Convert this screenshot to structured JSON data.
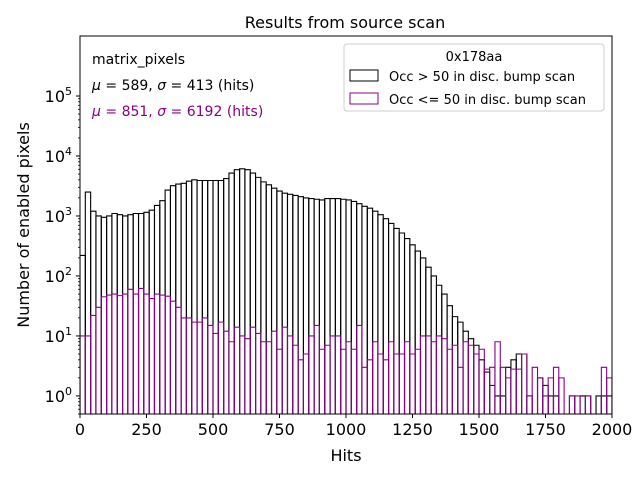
{
  "chart_data": {
    "type": "histogram",
    "title": "Results from source scan",
    "xlabel": "Hits",
    "ylabel": "Number of enabled pixels",
    "xlim": [
      0,
      2000
    ],
    "ylim": [
      0.5,
      1000000
    ],
    "yscale": "log",
    "bin_width": 20,
    "xticks": [
      0,
      250,
      500,
      750,
      1000,
      1250,
      1500,
      1750,
      2000
    ],
    "xtick_labels": [
      "0",
      "250",
      "500",
      "750",
      "1000",
      "1250",
      "1500",
      "1750",
      "2000"
    ],
    "yticks": [
      1,
      10,
      100,
      1000,
      10000,
      100000
    ],
    "ytick_labels": [
      {
        "b": "10",
        "e": "0"
      },
      {
        "b": "10",
        "e": "1"
      },
      {
        "b": "10",
        "e": "2"
      },
      {
        "b": "10",
        "e": "3"
      },
      {
        "b": "10",
        "e": "4"
      },
      {
        "b": "10",
        "e": "5"
      }
    ],
    "annotations": {
      "name": "matrix_pixels",
      "stats_black": {
        "mu": "589",
        "sigma": "413",
        "unit": "(hits)"
      },
      "stats_purple": {
        "mu": "851",
        "sigma": "6192",
        "unit": "(hits)"
      }
    },
    "legend": {
      "title": "0x178aa",
      "position": "top-right",
      "entries": [
        "Occ > 50 in disc. bump scan",
        "Occ <= 50 in disc. bump scan"
      ]
    },
    "series": [
      {
        "name": "Occ > 50 in disc. bump scan",
        "color": "#000000",
        "values": [
          220,
          2500,
          1200,
          1000,
          950,
          1000,
          1100,
          1050,
          1000,
          1050,
          1100,
          1100,
          1150,
          1250,
          1500,
          1800,
          2700,
          3200,
          3400,
          3500,
          3800,
          4000,
          3900,
          3900,
          3900,
          3900,
          3900,
          4200,
          5200,
          5900,
          6100,
          5900,
          5200,
          4400,
          3700,
          3300,
          2900,
          2600,
          2400,
          2300,
          2200,
          2100,
          2000,
          1950,
          1900,
          1850,
          1950,
          1950,
          1950,
          1900,
          1850,
          1750,
          1600,
          1450,
          1350,
          1200,
          1050,
          900,
          750,
          620,
          520,
          420,
          330,
          260,
          200,
          140,
          100,
          70,
          50,
          32,
          21,
          17,
          12,
          9,
          7,
          4,
          2.5,
          1.5,
          1,
          1,
          3,
          4,
          5,
          5,
          1,
          0.5,
          2,
          1.5,
          1,
          1,
          0.5,
          0.5,
          1,
          0.5,
          1,
          1,
          0.5,
          1,
          1,
          1
        ]
      },
      {
        "name": "Occ <= 50 in disc. bump scan",
        "color": "#880088",
        "values": [
          10,
          10,
          22,
          30,
          45,
          48,
          50,
          47,
          50,
          60,
          50,
          62,
          50,
          42,
          50,
          48,
          46,
          38,
          30,
          20,
          20,
          17,
          17,
          20,
          15,
          11,
          17,
          12,
          8,
          14,
          10,
          9,
          14,
          11,
          8,
          8,
          12,
          6,
          14,
          10,
          7,
          4,
          5,
          10,
          15,
          6,
          7,
          10,
          10,
          6,
          8,
          6,
          15,
          3,
          4,
          8,
          5,
          4,
          8,
          5,
          5,
          8,
          5,
          6,
          10,
          10,
          8,
          10,
          9,
          6,
          7,
          3,
          8,
          7,
          5,
          6,
          2.8,
          3,
          8,
          3,
          2,
          2.8,
          2.8,
          5,
          1,
          3,
          2,
          1,
          2,
          3,
          2,
          0.4,
          1,
          1,
          0.4,
          1,
          0.4,
          0.4,
          3,
          2
        ]
      }
    ]
  }
}
